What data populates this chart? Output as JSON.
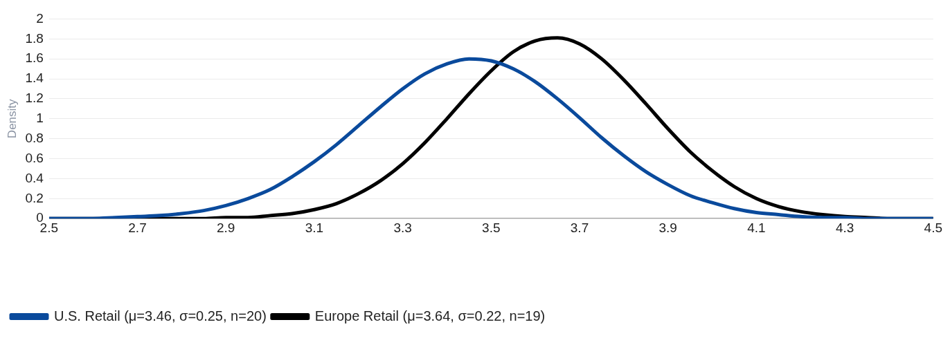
{
  "chart_data": {
    "type": "line",
    "ylabel": "Density",
    "x": [
      2.5,
      2.55,
      2.6,
      2.65,
      2.7,
      2.75,
      2.8,
      2.85,
      2.9,
      2.95,
      3.0,
      3.05,
      3.1,
      3.15,
      3.2,
      3.25,
      3.3,
      3.35,
      3.4,
      3.45,
      3.5,
      3.55,
      3.6,
      3.65,
      3.7,
      3.75,
      3.8,
      3.85,
      3.9,
      3.95,
      4.0,
      4.05,
      4.1,
      4.15,
      4.2,
      4.25,
      4.3,
      4.35,
      4.4,
      4.45,
      4.5
    ],
    "series": [
      {
        "name": "U.S. Retail (μ=3.46, σ=0.25, n=20)",
        "color": "#0a4a9c",
        "values": [
          0.0,
          0.0,
          0.0,
          0.01,
          0.02,
          0.03,
          0.05,
          0.08,
          0.13,
          0.2,
          0.29,
          0.42,
          0.57,
          0.74,
          0.93,
          1.12,
          1.3,
          1.45,
          1.55,
          1.6,
          1.58,
          1.5,
          1.37,
          1.2,
          1.01,
          0.81,
          0.63,
          0.47,
          0.34,
          0.23,
          0.16,
          0.1,
          0.06,
          0.04,
          0.02,
          0.01,
          0.01,
          0.0,
          0.0,
          0.0,
          0.0
        ]
      },
      {
        "name": "Europe Retail (μ=3.64, σ=0.22, n=19)",
        "color": "#000000",
        "values": [
          0.0,
          0.0,
          0.0,
          0.0,
          0.0,
          0.0,
          0.0,
          0.0,
          0.01,
          0.01,
          0.03,
          0.05,
          0.09,
          0.15,
          0.25,
          0.38,
          0.55,
          0.76,
          1.0,
          1.25,
          1.48,
          1.67,
          1.78,
          1.81,
          1.75,
          1.6,
          1.39,
          1.15,
          0.9,
          0.67,
          0.48,
          0.32,
          0.2,
          0.12,
          0.07,
          0.04,
          0.02,
          0.01,
          0.0,
          0.0,
          0.0
        ]
      }
    ],
    "xlim": [
      2.5,
      4.5
    ],
    "xticks": [
      2.5,
      2.7,
      2.9,
      3.1,
      3.3,
      3.5,
      3.7,
      3.9,
      4.1,
      4.3,
      4.5
    ],
    "ylim": [
      0,
      2
    ],
    "yticks": [
      0,
      0.2,
      0.4,
      0.6,
      0.8,
      1,
      1.2,
      1.4,
      1.6,
      1.8,
      2
    ],
    "grid": "y",
    "legend": "bottom left",
    "marker": "none",
    "line_style": "solid"
  }
}
